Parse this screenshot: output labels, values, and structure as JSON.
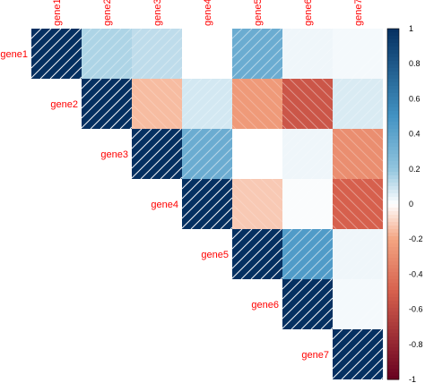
{
  "chart_data": {
    "type": "heatmap",
    "subtype": "correlation-matrix-upper",
    "genes": [
      "gene1",
      "gene2",
      "gene3",
      "gene4",
      "gene5",
      "gene6",
      "gene7"
    ],
    "matrix": [
      [
        1,
        0.15,
        0.12,
        0,
        0.35,
        0.03,
        0.02
      ],
      [
        null,
        1,
        -0.15,
        0.08,
        -0.25,
        -0.55,
        0.07
      ],
      [
        null,
        null,
        1,
        0.35,
        0,
        0.03,
        -0.3
      ],
      [
        null,
        null,
        null,
        1,
        -0.12,
        0.01,
        -0.5
      ],
      [
        null,
        null,
        null,
        null,
        1,
        0.45,
        0.03
      ],
      [
        null,
        null,
        null,
        null,
        null,
        1,
        0.02
      ],
      [
        null,
        null,
        null,
        null,
        null,
        null,
        1
      ]
    ],
    "colorbar": {
      "range": [
        -1,
        1
      ],
      "ticks": [
        "-1",
        "-0.8",
        "-0.6",
        "-0.4",
        "-0.2",
        "0",
        "0.2",
        "0.4",
        "0.6",
        "0.8",
        "1"
      ]
    },
    "colors": {
      "negative_end": "#67001f",
      "mid_negative": "#d6604d",
      "zero": "#ffffff",
      "mid_positive": "#4393c3",
      "positive_end": "#053061",
      "label_color": "#ff0000",
      "hatch_color": "#ffffff"
    }
  }
}
